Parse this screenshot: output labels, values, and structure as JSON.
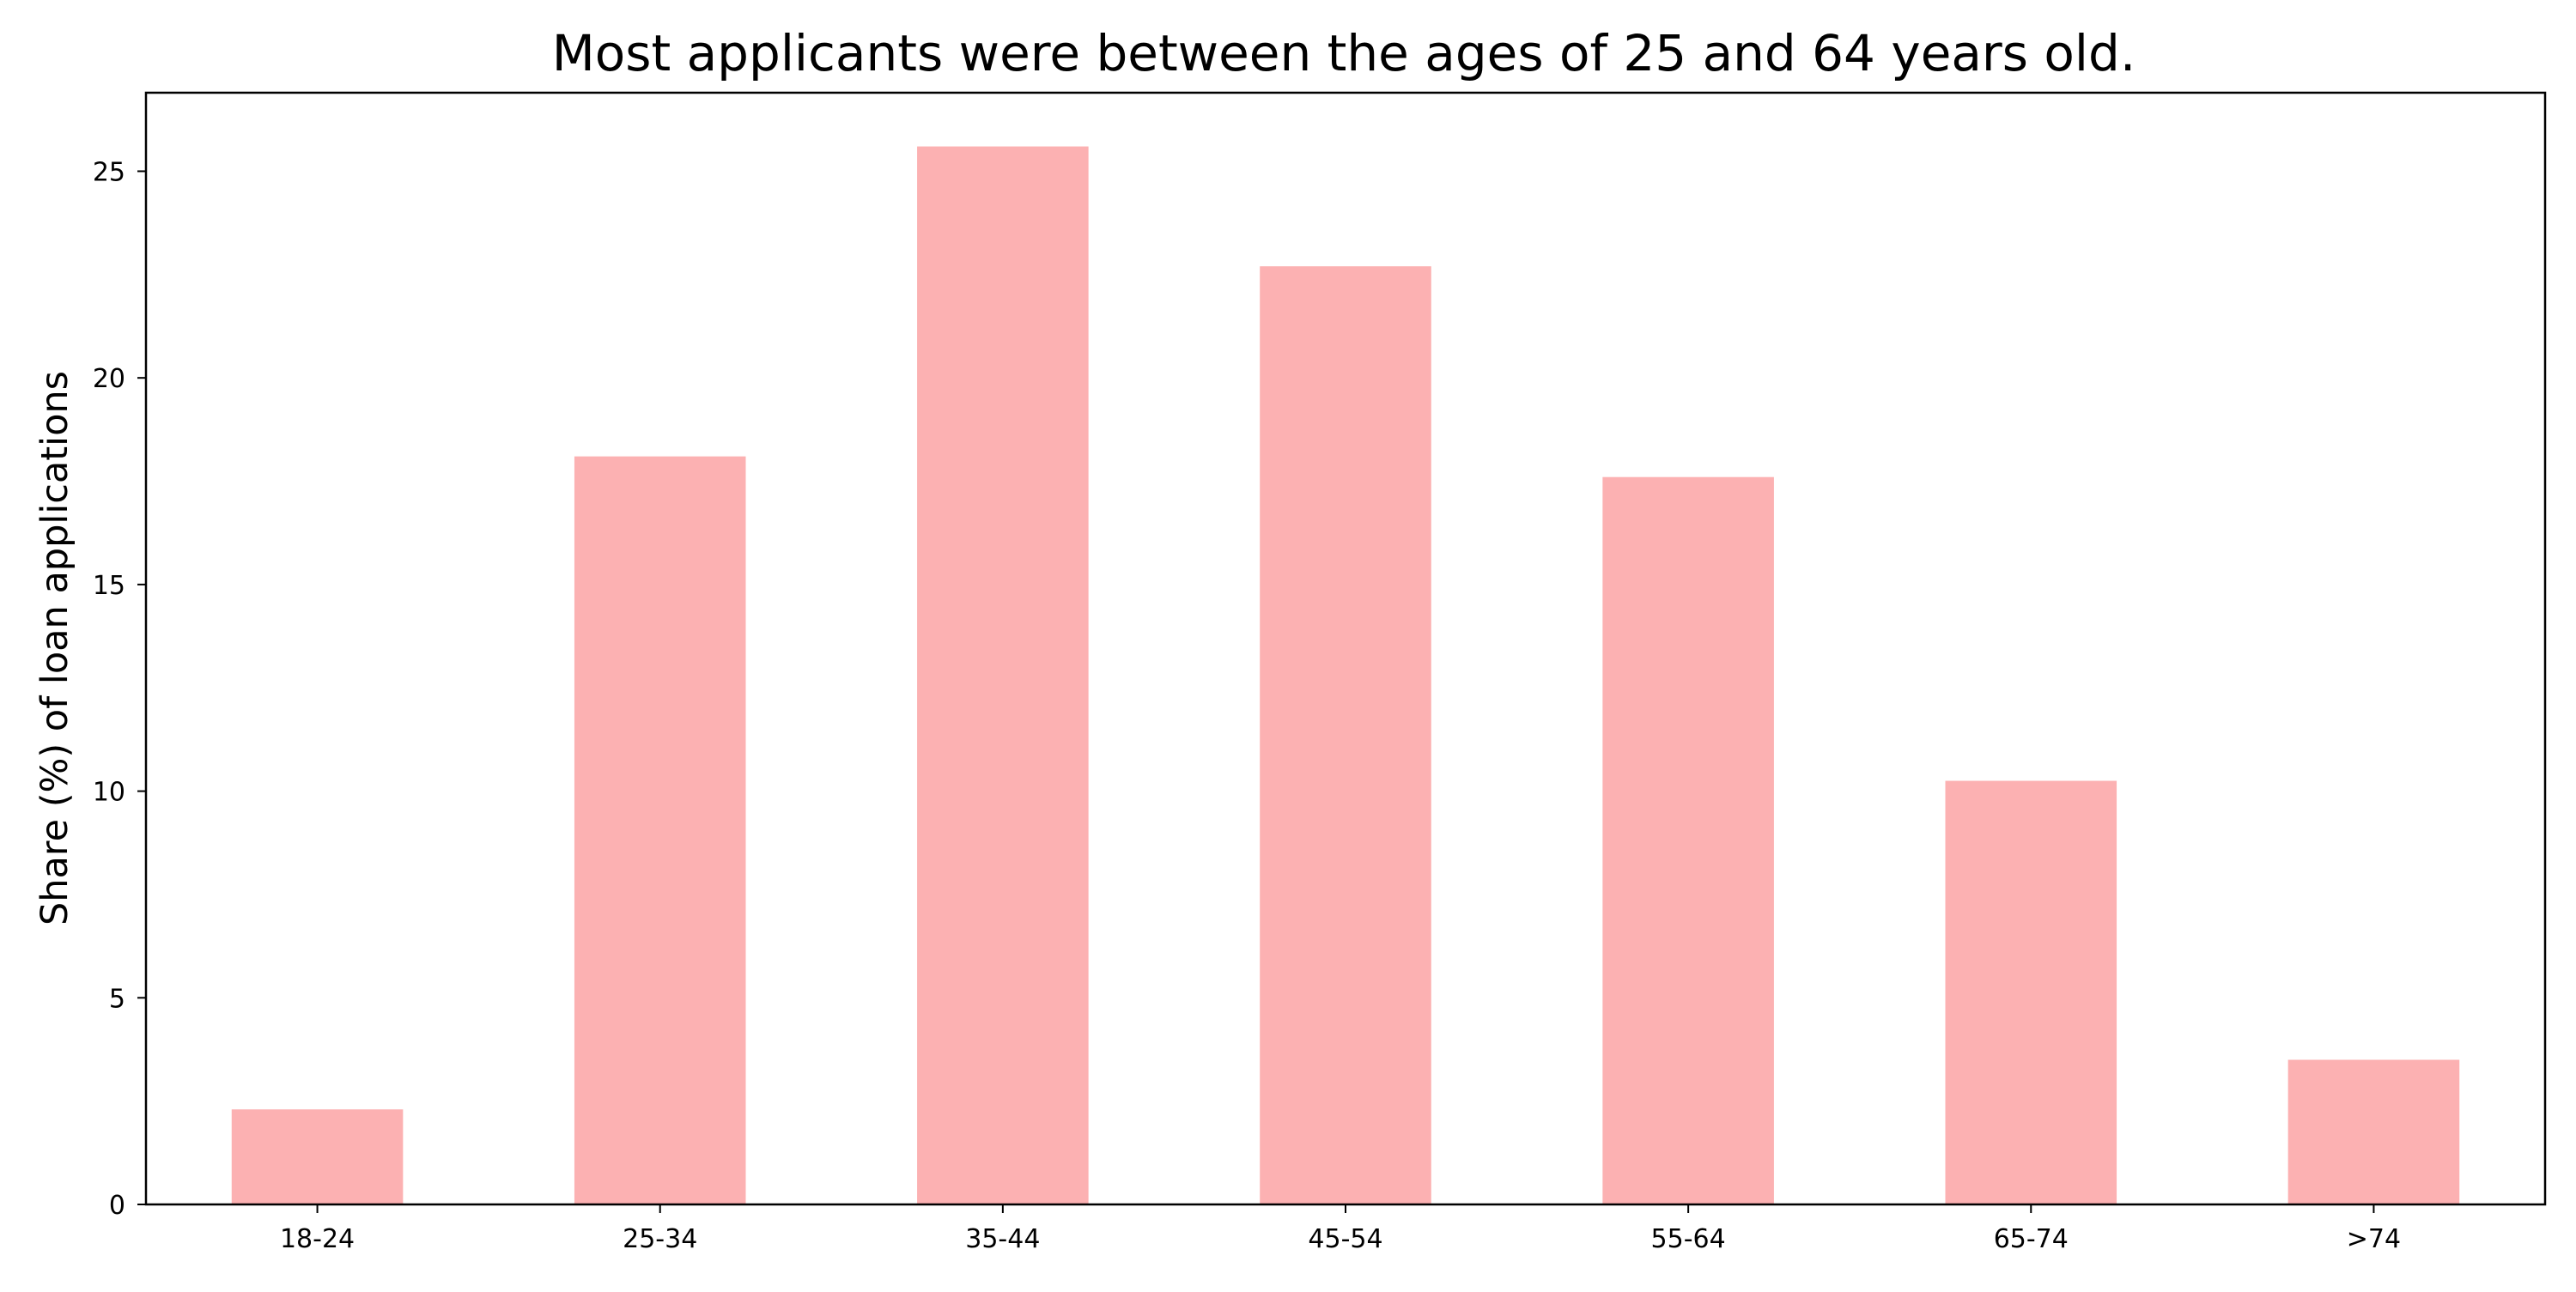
{
  "chart_data": {
    "type": "bar",
    "title": "Most applicants were between the ages of 25 and 64 years old.",
    "xlabel": "",
    "ylabel": "Share (%) of loan applications",
    "categories": [
      "18-24",
      "25-34",
      "35-44",
      "45-54",
      "55-64",
      "65-74",
      ">74"
    ],
    "values": [
      2.3,
      18.1,
      25.6,
      22.7,
      17.6,
      10.25,
      3.5
    ],
    "ylim": [
      0,
      26.9
    ],
    "yticks": [
      0,
      5,
      10,
      15,
      20,
      25
    ],
    "bar_color": "#fcb1b2",
    "grid": false,
    "legend": "none"
  }
}
